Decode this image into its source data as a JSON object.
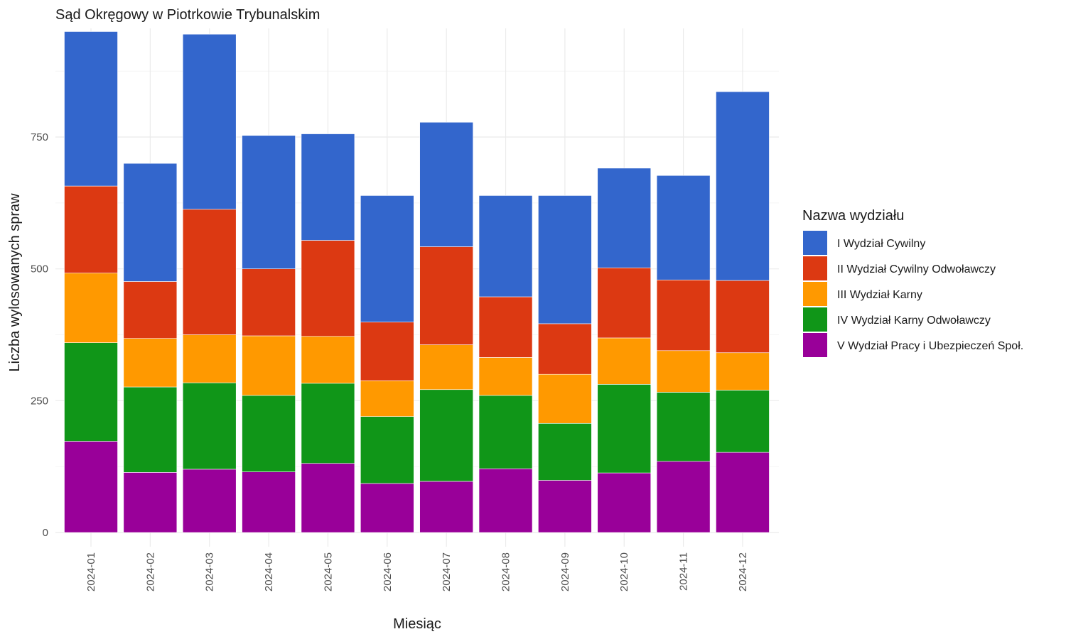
{
  "chart_data": {
    "type": "bar",
    "stacked": true,
    "title": "Sąd Okręgowy w Piotrkowie Trybunalskim",
    "xlabel": "Miesiąc",
    "ylabel": "Liczba wylosowanych spraw",
    "categories": [
      "2024-01",
      "2024-02",
      "2024-03",
      "2024-04",
      "2024-05",
      "2024-06",
      "2024-07",
      "2024-08",
      "2024-09",
      "2024-10",
      "2024-11",
      "2024-12"
    ],
    "ylim": [
      0,
      975
    ],
    "yticks": [
      0,
      250,
      500,
      750
    ],
    "grid": true,
    "legend": {
      "title": "Nazwa wydziału",
      "position": "right"
    },
    "series": [
      {
        "name": "V Wydział Pracy i Ubezpieczeń Społ.",
        "color": "#990099",
        "values": [
          173,
          114,
          120,
          115,
          131,
          93,
          97,
          121,
          99,
          113,
          135,
          152
        ]
      },
      {
        "name": "IV Wydział Karny Odwoławczy",
        "color": "#109618",
        "values": [
          187,
          162,
          164,
          145,
          152,
          127,
          174,
          139,
          108,
          168,
          131,
          118
        ]
      },
      {
        "name": "III Wydział Karny",
        "color": "#FF9900",
        "values": [
          132,
          92,
          91,
          113,
          89,
          68,
          85,
          72,
          93,
          88,
          79,
          71
        ]
      },
      {
        "name": "II Wydział Cywilny Odwoławczy",
        "color": "#DC3912",
        "values": [
          165,
          108,
          238,
          127,
          182,
          111,
          186,
          115,
          96,
          133,
          134,
          137
        ]
      },
      {
        "name": "I Wydział Cywilny",
        "color": "#3366CC",
        "values": [
          293,
          224,
          332,
          253,
          202,
          240,
          236,
          192,
          243,
          189,
          198,
          358
        ]
      }
    ]
  }
}
